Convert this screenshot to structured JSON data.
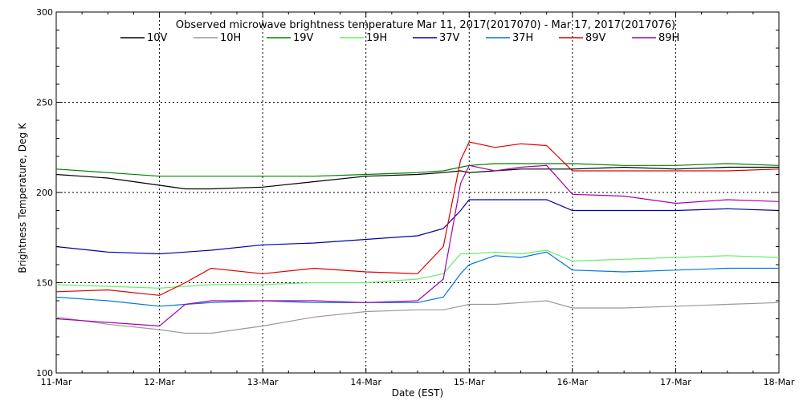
{
  "chart_data": {
    "type": "line",
    "title": "Observed microwave brightness temperature Mar 11, 2017(2017070) - Mar 17, 2017(2017076)",
    "xlabel": "Date (EST)",
    "ylabel": "Brightness Temperature, Deg K",
    "xlim": [
      "2017-03-11",
      "2017-03-18"
    ],
    "ylim": [
      100,
      300
    ],
    "x_tick_labels": [
      "11-Mar",
      "12-Mar",
      "13-Mar",
      "14-Mar",
      "15-Mar",
      "16-Mar",
      "17-Mar",
      "18-Mar"
    ],
    "y_tick_labels": [
      "100",
      "150",
      "200",
      "250",
      "300"
    ],
    "grid": true,
    "legend_position": "top",
    "x": [
      "2017-03-11T00:00",
      "2017-03-11T12:00",
      "2017-03-12T00:00",
      "2017-03-12T06:00",
      "2017-03-12T12:00",
      "2017-03-13T00:00",
      "2017-03-13T12:00",
      "2017-03-14T00:00",
      "2017-03-14T12:00",
      "2017-03-14T18:00",
      "2017-03-14T22:00",
      "2017-03-15T00:00",
      "2017-03-15T06:00",
      "2017-03-15T12:00",
      "2017-03-15T18:00",
      "2017-03-16T00:00",
      "2017-03-16T12:00",
      "2017-03-17T00:00",
      "2017-03-17T12:00",
      "2017-03-18T00:00"
    ],
    "series": [
      {
        "name": "10V",
        "color": "#000000",
        "values": [
          210,
          208,
          204,
          202,
          202,
          203,
          206,
          209,
          210,
          211,
          212,
          211,
          212,
          213,
          213,
          213,
          214,
          213,
          214,
          214
        ]
      },
      {
        "name": "10H",
        "color": "#999999",
        "values": [
          131,
          127,
          124,
          122,
          122,
          126,
          131,
          134,
          135,
          135,
          137,
          138,
          138,
          139,
          140,
          136,
          136,
          137,
          138,
          139
        ]
      },
      {
        "name": "19V",
        "color": "#008000",
        "values": [
          213,
          211,
          209,
          209,
          209,
          209,
          209,
          210,
          211,
          212,
          214,
          215,
          216,
          216,
          216,
          216,
          215,
          215,
          216,
          215
        ]
      },
      {
        "name": "19H",
        "color": "#66ee66",
        "values": [
          149,
          148,
          147,
          148,
          149,
          149,
          150,
          150,
          152,
          155,
          166,
          166,
          167,
          166,
          168,
          162,
          163,
          164,
          165,
          164
        ]
      },
      {
        "name": "37V",
        "color": "#0000aa",
        "values": [
          170,
          167,
          166,
          167,
          168,
          171,
          172,
          174,
          176,
          180,
          190,
          196,
          196,
          196,
          196,
          190,
          190,
          190,
          191,
          190
        ]
      },
      {
        "name": "37H",
        "color": "#0077dd",
        "values": [
          142,
          140,
          137,
          138,
          139,
          140,
          139,
          139,
          139,
          142,
          155,
          160,
          165,
          164,
          167,
          157,
          156,
          157,
          158,
          158
        ]
      },
      {
        "name": "89V",
        "color": "#dd0000",
        "values": [
          145,
          146,
          143,
          150,
          158,
          155,
          158,
          156,
          155,
          170,
          218,
          228,
          225,
          227,
          226,
          212,
          212,
          212,
          212,
          213
        ]
      },
      {
        "name": "89H",
        "color": "#aa00aa",
        "values": [
          130,
          128,
          126,
          138,
          140,
          140,
          140,
          139,
          140,
          152,
          205,
          215,
          212,
          214,
          215,
          199,
          198,
          194,
          196,
          195
        ]
      }
    ]
  }
}
